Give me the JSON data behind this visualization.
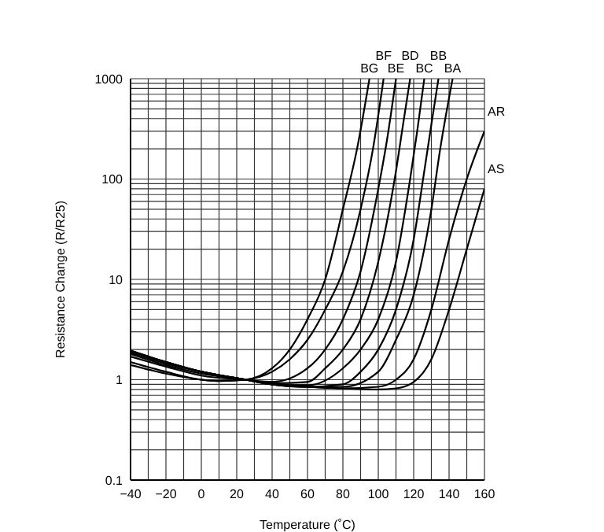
{
  "chart_data": {
    "type": "line",
    "xlabel": "Temperature (˚C)",
    "ylabel": "Resistance Change (R/R25)",
    "log": "y",
    "grid": true,
    "xlim": [
      -40,
      160
    ],
    "xticks": [
      {
        "value": -40,
        "label": "−40"
      },
      {
        "value": -30,
        "label": null
      },
      {
        "value": -20,
        "label": "−20"
      },
      {
        "value": -10,
        "label": null
      },
      0,
      {
        "value": 10,
        "label": null
      },
      20,
      {
        "value": 30,
        "label": null
      },
      40,
      {
        "value": 50,
        "label": null
      },
      60,
      {
        "value": 70,
        "label": null
      },
      80,
      {
        "value": 90,
        "label": null
      },
      100,
      {
        "value": 110,
        "label": null
      },
      120,
      {
        "value": 130,
        "label": null
      },
      140,
      {
        "value": 150,
        "label": null
      },
      160
    ],
    "ylim": [
      0.1,
      1000
    ],
    "yticks": [
      0.1,
      {
        "value": 0.2,
        "label": null
      },
      {
        "value": 0.3,
        "label": null
      },
      {
        "value": 0.4,
        "label": null
      },
      {
        "value": 0.5,
        "label": null
      },
      {
        "value": 0.6,
        "label": null
      },
      {
        "value": 0.7,
        "label": null
      },
      {
        "value": 0.8,
        "label": null
      },
      {
        "value": 0.9,
        "label": null
      },
      1,
      {
        "value": 2,
        "label": null
      },
      {
        "value": 3,
        "label": null
      },
      {
        "value": 4,
        "label": null
      },
      {
        "value": 5,
        "label": null
      },
      {
        "value": 6,
        "label": null
      },
      {
        "value": 7,
        "label": null
      },
      {
        "value": 8,
        "label": null
      },
      {
        "value": 9,
        "label": null
      },
      10,
      {
        "value": 20,
        "label": null
      },
      {
        "value": 30,
        "label": null
      },
      {
        "value": 40,
        "label": null
      },
      {
        "value": 50,
        "label": null
      },
      {
        "value": 60,
        "label": null
      },
      {
        "value": 70,
        "label": null
      },
      {
        "value": 80,
        "label": null
      },
      {
        "value": 90,
        "label": null
      },
      100,
      {
        "value": 200,
        "label": null
      },
      {
        "value": 300,
        "label": null
      },
      {
        "value": 400,
        "label": null
      },
      {
        "value": 500,
        "label": null
      },
      {
        "value": 600,
        "label": null
      },
      {
        "value": 700,
        "label": null
      },
      {
        "value": 800,
        "label": null
      },
      {
        "value": 900,
        "label": null
      },
      1000
    ],
    "series": [
      {
        "name": "BG",
        "color": "#000000",
        "x": [
          -40,
          -20,
          0,
          10,
          25,
          40,
          50,
          60,
          70,
          80,
          88,
          95
        ],
        "values": [
          1.4,
          1.15,
          1.0,
          0.97,
          1.0,
          1.3,
          2.0,
          4,
          10,
          50,
          200,
          1000
        ]
      },
      {
        "name": "BF",
        "color": "#000000",
        "x": [
          -40,
          -20,
          0,
          10,
          25,
          40,
          50,
          60,
          70,
          80,
          90,
          97,
          103
        ],
        "values": [
          1.5,
          1.2,
          1.0,
          0.97,
          1.0,
          1.2,
          1.6,
          2.5,
          5,
          12,
          50,
          200,
          1000
        ]
      },
      {
        "name": "BE",
        "color": "#000000",
        "x": [
          -40,
          -20,
          0,
          25,
          40,
          60,
          70,
          80,
          90,
          100,
          105,
          110
        ],
        "values": [
          1.7,
          1.35,
          1.1,
          1.0,
          0.95,
          1.3,
          2,
          4,
          12,
          80,
          250,
          1000
        ]
      },
      {
        "name": "BD",
        "color": "#000000",
        "x": [
          -40,
          -20,
          0,
          25,
          40,
          60,
          70,
          80,
          90,
          100,
          110,
          114,
          118
        ],
        "values": [
          1.8,
          1.4,
          1.15,
          1.0,
          0.92,
          0.95,
          1.3,
          2,
          4,
          15,
          120,
          350,
          1000
        ]
      },
      {
        "name": "BC",
        "color": "#000000",
        "x": [
          -40,
          -20,
          0,
          25,
          40,
          60,
          80,
          90,
          100,
          110,
          118,
          122,
          126
        ],
        "values": [
          1.85,
          1.45,
          1.2,
          1.0,
          0.9,
          0.88,
          1.3,
          2,
          4,
          15,
          100,
          300,
          1000
        ]
      },
      {
        "name": "BB",
        "color": "#000000",
        "x": [
          -40,
          -20,
          0,
          25,
          40,
          60,
          80,
          90,
          100,
          110,
          120,
          126,
          130,
          134
        ],
        "values": [
          1.9,
          1.5,
          1.2,
          1.0,
          0.9,
          0.85,
          0.9,
          1.2,
          2,
          5,
          25,
          120,
          350,
          1000
        ]
      },
      {
        "name": "BA",
        "color": "#000000",
        "x": [
          -40,
          -20,
          0,
          25,
          40,
          60,
          80,
          100,
          110,
          120,
          130,
          135,
          142
        ],
        "values": [
          1.95,
          1.5,
          1.2,
          1.0,
          0.9,
          0.85,
          0.85,
          1.2,
          2.5,
          7,
          50,
          200,
          1000
        ]
      },
      {
        "name": "AR",
        "color": "#000000",
        "x": [
          -40,
          -20,
          0,
          25,
          40,
          60,
          80,
          100,
          110,
          120,
          130,
          140,
          150,
          160
        ],
        "values": [
          1.95,
          1.5,
          1.2,
          1.0,
          0.9,
          0.85,
          0.82,
          0.85,
          1.0,
          1.6,
          5,
          25,
          100,
          300
        ]
      },
      {
        "name": "AS",
        "color": "#000000",
        "x": [
          -40,
          -20,
          0,
          25,
          40,
          60,
          80,
          100,
          110,
          120,
          130,
          140,
          150,
          160
        ],
        "values": [
          1.95,
          1.5,
          1.2,
          1.0,
          0.9,
          0.85,
          0.82,
          0.8,
          0.82,
          0.95,
          1.6,
          5,
          20,
          80
        ]
      }
    ]
  }
}
